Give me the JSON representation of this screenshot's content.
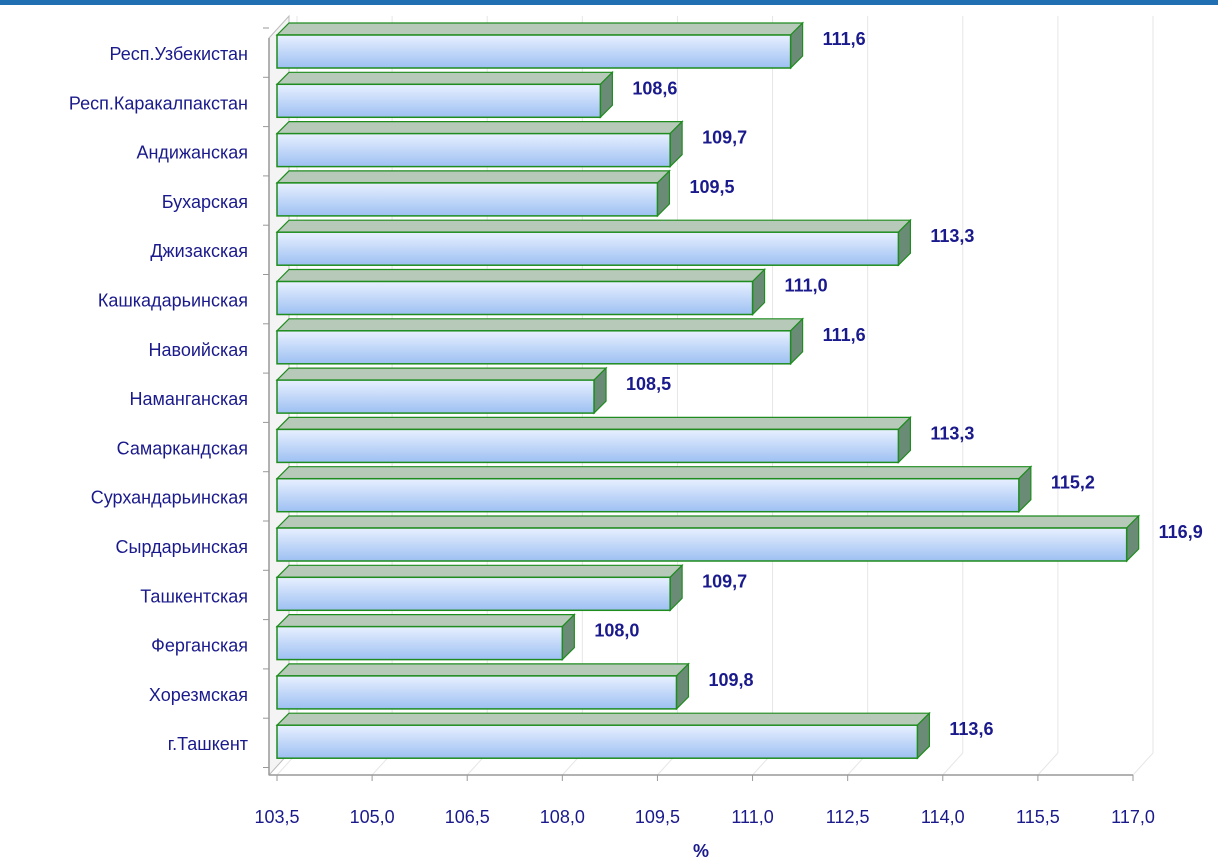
{
  "chart_data": {
    "type": "bar",
    "orientation": "horizontal",
    "categories": [
      "Респ.Узбекистан",
      "Респ.Каракалпакстан",
      "Андижанская",
      "Бухарская",
      "Джизакская",
      "Кашкадарьинская",
      "Навоийская",
      "Наманганская",
      "Самаркандская",
      "Сурхандарьинская",
      "Сырдарьинская",
      "Ташкентская",
      "Ферганская",
      "Хорезмская",
      "г.Ташкент"
    ],
    "values": [
      111.6,
      108.6,
      109.7,
      109.5,
      113.3,
      111.0,
      111.6,
      108.5,
      113.3,
      115.2,
      116.9,
      109.7,
      108.0,
      109.8,
      113.6
    ],
    "value_labels": [
      "111,6",
      "108,6",
      "109,7",
      "109,5",
      "113,3",
      "111,0",
      "111,6",
      "108,5",
      "113,3",
      "115,2",
      "116,9",
      "109,7",
      "108,0",
      "109,8",
      "113,6"
    ],
    "xlim": [
      103.5,
      117.0
    ],
    "x_ticks": [
      "103,5",
      "105,0",
      "106,5",
      "108,0",
      "109,5",
      "111,0",
      "112,5",
      "114,0",
      "115,5",
      "117,0"
    ],
    "xlabel": "%",
    "ylabel": "",
    "title": "",
    "grid": true,
    "legend": "none",
    "colors": {
      "bar_fill_top": "#e8f0ff",
      "bar_fill_bottom": "#9dc0f2",
      "bar_border": "#1e8c1e",
      "bar_side": "#6a8c76",
      "text": "#1a1a8c",
      "grid": "#dddddd",
      "top_rule": "#1f6fb2"
    }
  }
}
